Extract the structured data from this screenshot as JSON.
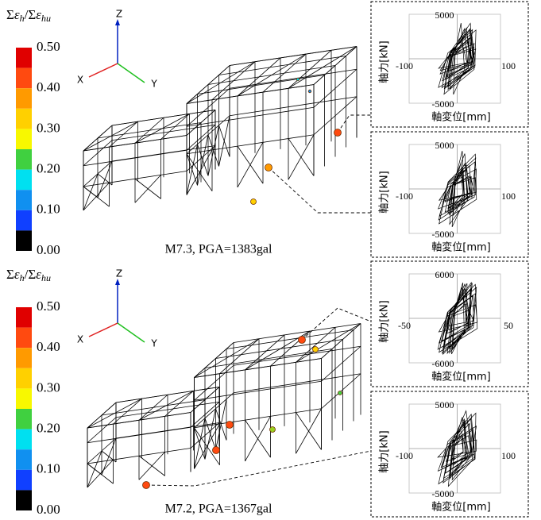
{
  "colorbar_colors": [
    "#e00000",
    "#ff4a10",
    "#ff9a00",
    "#ffd000",
    "#f8f800",
    "#40d040",
    "#00e0f0",
    "#1090f0",
    "#1040ff",
    "#000000"
  ],
  "panels": [
    {
      "legend_title": [
        "Σ",
        "ε",
        "h",
        "/Σ",
        "ε",
        "hu"
      ],
      "colorbar_ticks": [
        {
          "value": 0.5,
          "label": "0.50"
        },
        {
          "value": 0.4,
          "label": "0.40"
        },
        {
          "value": 0.3,
          "label": "0.30"
        },
        {
          "value": 0.2,
          "label": "0.20"
        },
        {
          "value": 0.1,
          "label": "0.10"
        },
        {
          "value": 0,
          "label": "0.00"
        }
      ],
      "axes": {
        "z": "Z",
        "x": "X",
        "y": "Y"
      },
      "caption": "M7.3,  PGA=1383gal",
      "insets": [
        {
          "yticks": [
            5000,
            -5000
          ],
          "xticks": [
            -100,
            100
          ],
          "ylabel": "軸力[kN]",
          "xlabel": "軸変位[mm]"
        },
        {
          "yticks": [
            5000,
            -5000
          ],
          "xticks": [
            -100,
            100
          ],
          "ylabel": "軸力[kN]",
          "xlabel": "軸変位[mm]"
        }
      ]
    },
    {
      "legend_title": [
        "Σ",
        "ε",
        "h",
        "/Σ",
        "ε",
        "hu"
      ],
      "colorbar_ticks": [
        {
          "value": 0.5,
          "label": "0.50"
        },
        {
          "value": 0.4,
          "label": "0.40"
        },
        {
          "value": 0.3,
          "label": "0.30"
        },
        {
          "value": 0.2,
          "label": "0.20"
        },
        {
          "value": 0.1,
          "label": "0.10"
        },
        {
          "value": 0,
          "label": "0.00"
        }
      ],
      "axes": {
        "z": "Z",
        "x": "X",
        "y": "Y"
      },
      "caption": "M7.2,  PGA=1367gal",
      "insets": [
        {
          "yticks": [
            6000,
            -6000
          ],
          "xticks": [
            -50,
            50
          ],
          "ylabel": "軸力[kN]",
          "xlabel": "軸変位[mm]"
        },
        {
          "yticks": [
            5000,
            -5000
          ],
          "xticks": [
            -100,
            100
          ],
          "ylabel": "軸力[kN]",
          "xlabel": "軸変位[mm]"
        }
      ]
    }
  ]
}
